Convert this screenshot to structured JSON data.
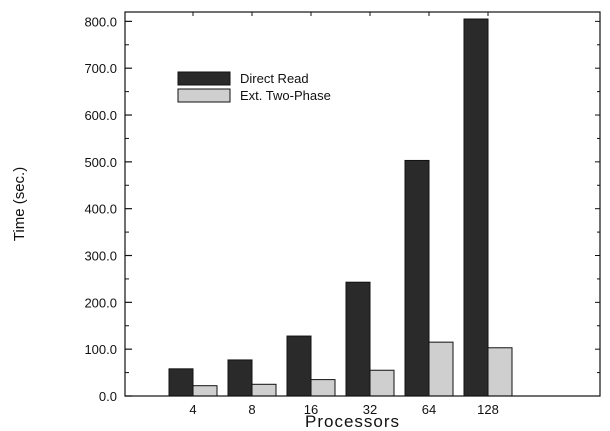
{
  "chart_data": {
    "type": "bar",
    "categories": [
      "4",
      "8",
      "16",
      "32",
      "64",
      "128"
    ],
    "series": [
      {
        "name": "Direct Read",
        "values": [
          58,
          77,
          128,
          243,
          503,
          805
        ],
        "color": "#2a2a2a"
      },
      {
        "name": "Ext. Two-Phase",
        "values": [
          22,
          25,
          35,
          55,
          115,
          103
        ],
        "color": "#cfcfcf"
      }
    ],
    "title": "",
    "xlabel": "Processors",
    "ylabel": "Time (sec.)",
    "ylim": [
      0,
      820
    ],
    "yticks": [
      0,
      100,
      200,
      300,
      400,
      500,
      600,
      700,
      800
    ],
    "ytick_labels": [
      "0.0",
      "100.0",
      "200.0",
      "300.0",
      "400.0",
      "500.0",
      "600.0",
      "700.0",
      "800.0"
    ],
    "grid": false,
    "legend_position": "top-left"
  }
}
